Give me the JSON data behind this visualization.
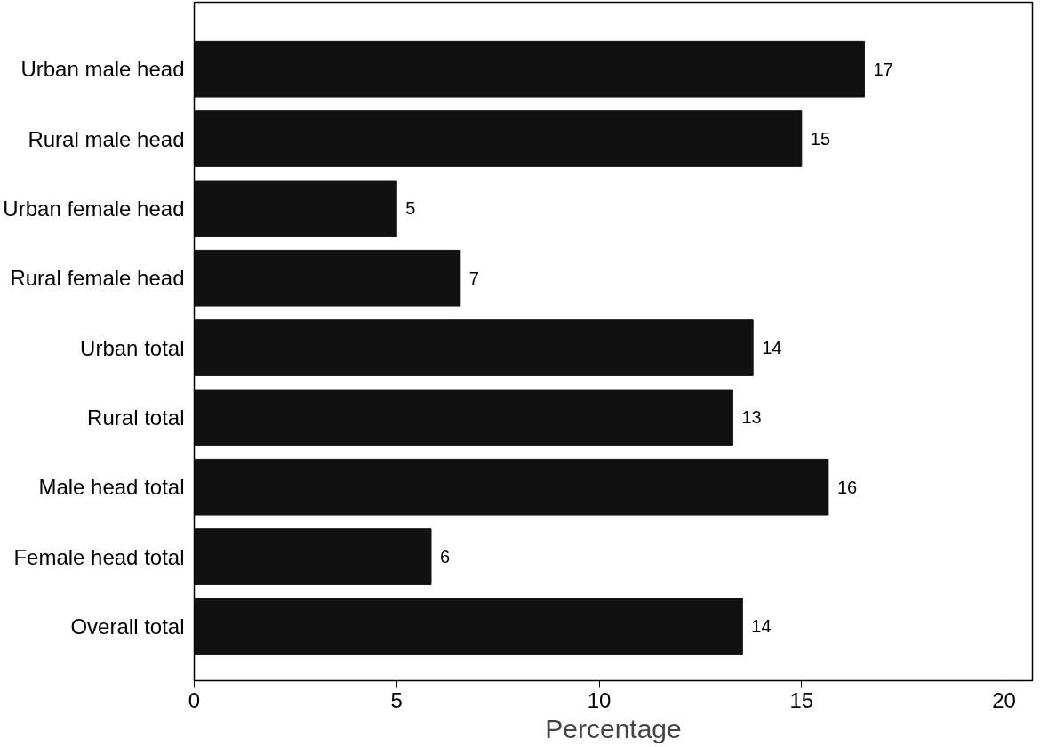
{
  "chart_data": {
    "type": "bar",
    "orientation": "horizontal",
    "xlabel": "Percentage",
    "categories": [
      "Urban male head",
      "Rural male head",
      "Urban female head",
      "Rural female head",
      "Urban total",
      "Rural total",
      "Male head total",
      "Female head total",
      "Overall total"
    ],
    "values": [
      16.55,
      15.0,
      5.0,
      6.57,
      13.8,
      13.3,
      15.66,
      5.85,
      13.54
    ],
    "value_labels": [
      "17",
      "15",
      "5",
      "7",
      "14",
      "13",
      "16",
      "6",
      "14"
    ],
    "color": "#111111",
    "xlim": [
      0,
      20.7
    ],
    "xticks": [
      0,
      5,
      10,
      15,
      20
    ],
    "grid": false
  }
}
